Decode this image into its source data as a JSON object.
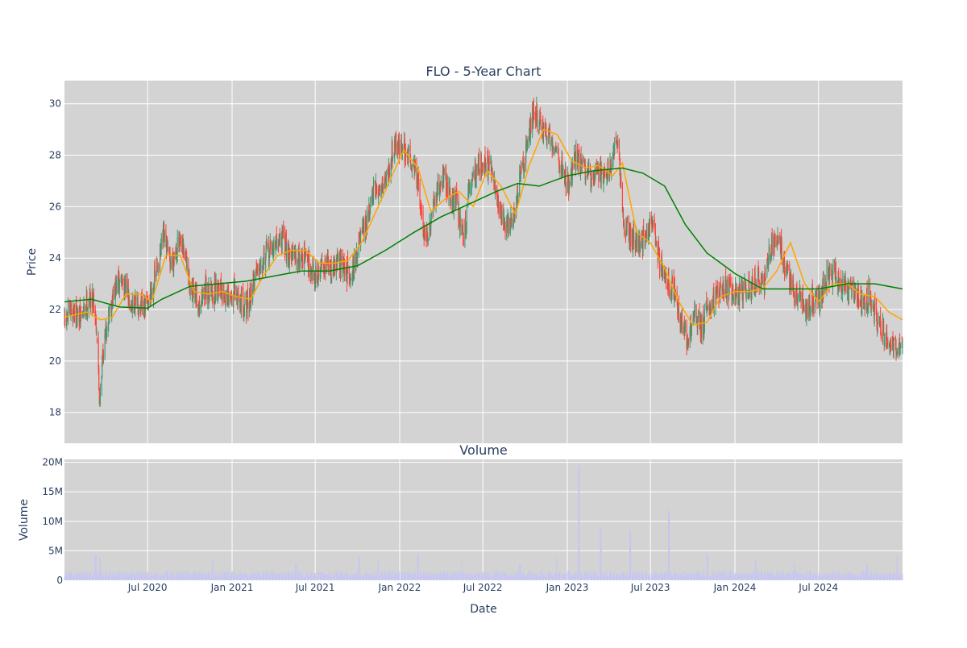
{
  "chart_data": [
    {
      "type": "candlestick",
      "title": "FLO - 5-Year Chart",
      "ylabel": "Price",
      "ylim": [
        16.8,
        30.9
      ],
      "xlim": [
        "2020-01-02",
        "2024-12-31"
      ],
      "yticks": [
        18,
        20,
        22,
        24,
        26,
        28,
        30
      ],
      "colors": {
        "up": "#3d9970",
        "down": "#ff4136",
        "ma_short": "#ffa500",
        "ma_long": "#008000",
        "plot_bg": "#d3d3d3",
        "grid": "#ffffff"
      },
      "series": [
        {
          "name": "Close",
          "kind": "candles",
          "points": [
            [
              "2020-01-02",
              21.5
            ],
            [
              "2020-01-20",
              22.0
            ],
            [
              "2020-02-05",
              21.6
            ],
            [
              "2020-02-20",
              22.3
            ],
            [
              "2020-03-05",
              22.5
            ],
            [
              "2020-03-12",
              21.3
            ],
            [
              "2020-03-18",
              18.5
            ],
            [
              "2020-03-25",
              20.2
            ],
            [
              "2020-04-08",
              22.0
            ],
            [
              "2020-04-22",
              22.8
            ],
            [
              "2020-05-05",
              23.2
            ],
            [
              "2020-05-20",
              22.5
            ],
            [
              "2020-06-05",
              22.2
            ],
            [
              "2020-06-22",
              22.0
            ],
            [
              "2020-07-06",
              22.5
            ],
            [
              "2020-07-20",
              23.4
            ],
            [
              "2020-08-05",
              24.8
            ],
            [
              "2020-08-20",
              23.8
            ],
            [
              "2020-09-05",
              24.5
            ],
            [
              "2020-09-20",
              24.2
            ],
            [
              "2020-10-05",
              22.5
            ],
            [
              "2020-10-20",
              22.3
            ],
            [
              "2020-11-05",
              22.8
            ],
            [
              "2020-11-20",
              22.6
            ],
            [
              "2020-12-05",
              23.0
            ],
            [
              "2020-12-20",
              22.3
            ],
            [
              "2021-01-05",
              22.6
            ],
            [
              "2021-01-20",
              22.4
            ],
            [
              "2021-02-05",
              22.1
            ],
            [
              "2021-02-20",
              23.4
            ],
            [
              "2021-03-05",
              24.0
            ],
            [
              "2021-03-20",
              24.2
            ],
            [
              "2021-04-05",
              24.5
            ],
            [
              "2021-04-20",
              24.8
            ],
            [
              "2021-05-05",
              24.2
            ],
            [
              "2021-05-20",
              24.0
            ],
            [
              "2021-06-05",
              24.1
            ],
            [
              "2021-06-20",
              23.7
            ],
            [
              "2021-07-05",
              23.2
            ],
            [
              "2021-07-20",
              23.9
            ],
            [
              "2021-08-05",
              23.5
            ],
            [
              "2021-08-20",
              23.9
            ],
            [
              "2021-09-05",
              23.4
            ],
            [
              "2021-09-20",
              23.5
            ],
            [
              "2021-10-05",
              24.6
            ],
            [
              "2021-10-20",
              25.2
            ],
            [
              "2021-11-05",
              26.5
            ],
            [
              "2021-11-20",
              26.8
            ],
            [
              "2021-12-05",
              27.2
            ],
            [
              "2021-12-20",
              28.5
            ],
            [
              "2022-01-05",
              28.3
            ],
            [
              "2022-01-20",
              28.0
            ],
            [
              "2022-02-05",
              27.5
            ],
            [
              "2022-02-20",
              25.2
            ],
            [
              "2022-03-05",
              24.8
            ],
            [
              "2022-03-20",
              26.3
            ],
            [
              "2022-04-05",
              27.2
            ],
            [
              "2022-04-20",
              26.5
            ],
            [
              "2022-05-05",
              26.2
            ],
            [
              "2022-05-20",
              24.8
            ],
            [
              "2022-06-05",
              27.0
            ],
            [
              "2022-06-20",
              27.6
            ],
            [
              "2022-07-05",
              27.8
            ],
            [
              "2022-07-20",
              27.3
            ],
            [
              "2022-08-05",
              26.0
            ],
            [
              "2022-08-20",
              25.2
            ],
            [
              "2022-09-05",
              25.5
            ],
            [
              "2022-09-20",
              27.0
            ],
            [
              "2022-10-05",
              28.5
            ],
            [
              "2022-10-20",
              29.8
            ],
            [
              "2022-11-05",
              29.0
            ],
            [
              "2022-11-20",
              28.8
            ],
            [
              "2022-12-05",
              28.4
            ],
            [
              "2022-12-20",
              27.5
            ],
            [
              "2023-01-05",
              26.8
            ],
            [
              "2023-01-20",
              28.0
            ],
            [
              "2023-02-05",
              27.6
            ],
            [
              "2023-02-20",
              27.0
            ],
            [
              "2023-03-05",
              27.5
            ],
            [
              "2023-03-20",
              27.3
            ],
            [
              "2023-04-05",
              27.6
            ],
            [
              "2023-04-20",
              28.4
            ],
            [
              "2023-05-05",
              25.2
            ],
            [
              "2023-05-20",
              24.8
            ],
            [
              "2023-06-05",
              24.5
            ],
            [
              "2023-06-20",
              24.8
            ],
            [
              "2023-07-05",
              25.5
            ],
            [
              "2023-07-20",
              24.0
            ],
            [
              "2023-08-05",
              23.0
            ],
            [
              "2023-08-20",
              22.8
            ],
            [
              "2023-09-05",
              21.5
            ],
            [
              "2023-09-20",
              20.8
            ],
            [
              "2023-10-05",
              21.8
            ],
            [
              "2023-10-20",
              21.2
            ],
            [
              "2023-11-05",
              22.2
            ],
            [
              "2023-11-20",
              22.6
            ],
            [
              "2023-12-05",
              22.8
            ],
            [
              "2023-12-20",
              22.8
            ],
            [
              "2024-01-05",
              22.5
            ],
            [
              "2024-01-20",
              22.7
            ],
            [
              "2024-02-05",
              22.8
            ],
            [
              "2024-02-20",
              23.2
            ],
            [
              "2024-03-05",
              23.0
            ],
            [
              "2024-03-20",
              24.5
            ],
            [
              "2024-04-05",
              25.0
            ],
            [
              "2024-04-20",
              23.5
            ],
            [
              "2024-05-05",
              22.8
            ],
            [
              "2024-05-20",
              22.5
            ],
            [
              "2024-06-05",
              22.0
            ],
            [
              "2024-06-20",
              22.4
            ],
            [
              "2024-07-05",
              22.6
            ],
            [
              "2024-07-20",
              23.2
            ],
            [
              "2024-08-05",
              23.5
            ],
            [
              "2024-08-20",
              23.0
            ],
            [
              "2024-09-05",
              22.6
            ],
            [
              "2024-09-20",
              22.8
            ],
            [
              "2024-10-05",
              22.3
            ],
            [
              "2024-10-20",
              22.6
            ],
            [
              "2024-11-05",
              21.6
            ],
            [
              "2024-11-20",
              21.0
            ],
            [
              "2024-12-05",
              20.6
            ],
            [
              "2024-12-20",
              20.4
            ],
            [
              "2024-12-31",
              20.5
            ]
          ]
        },
        {
          "name": "MA Short",
          "kind": "line",
          "points": [
            [
              "2020-01-02",
              21.7
            ],
            [
              "2020-02-20",
              21.9
            ],
            [
              "2020-03-20",
              21.6
            ],
            [
              "2020-04-15",
              21.7
            ],
            [
              "2020-05-15",
              22.6
            ],
            [
              "2020-06-15",
              22.6
            ],
            [
              "2020-07-10",
              22.3
            ],
            [
              "2020-08-10",
              24.1
            ],
            [
              "2020-09-10",
              24.1
            ],
            [
              "2020-10-10",
              22.7
            ],
            [
              "2020-11-10",
              22.6
            ],
            [
              "2020-12-10",
              22.7
            ],
            [
              "2021-01-10",
              22.5
            ],
            [
              "2021-02-10",
              22.4
            ],
            [
              "2021-03-10",
              23.3
            ],
            [
              "2021-04-10",
              24.1
            ],
            [
              "2021-05-10",
              24.3
            ],
            [
              "2021-06-10",
              24.3
            ],
            [
              "2021-07-10",
              23.8
            ],
            [
              "2021-08-10",
              23.8
            ],
            [
              "2021-09-10",
              23.9
            ],
            [
              "2021-10-10",
              24.6
            ],
            [
              "2021-11-10",
              25.8
            ],
            [
              "2021-12-10",
              27.0
            ],
            [
              "2022-01-10",
              28.2
            ],
            [
              "2022-02-10",
              27.5
            ],
            [
              "2022-03-10",
              25.8
            ],
            [
              "2022-04-10",
              26.3
            ],
            [
              "2022-05-10",
              26.6
            ],
            [
              "2022-06-10",
              26.0
            ],
            [
              "2022-07-10",
              27.4
            ],
            [
              "2022-08-10",
              26.8
            ],
            [
              "2022-09-10",
              25.7
            ],
            [
              "2022-10-10",
              27.6
            ],
            [
              "2022-11-10",
              29.0
            ],
            [
              "2022-12-10",
              28.8
            ],
            [
              "2023-01-10",
              27.8
            ],
            [
              "2023-02-10",
              27.5
            ],
            [
              "2023-03-10",
              27.6
            ],
            [
              "2023-04-10",
              27.2
            ],
            [
              "2023-05-01",
              27.7
            ],
            [
              "2023-06-01",
              25.0
            ],
            [
              "2023-07-01",
              24.6
            ],
            [
              "2023-08-01",
              23.6
            ],
            [
              "2023-09-01",
              22.3
            ],
            [
              "2023-10-01",
              21.4
            ],
            [
              "2023-11-01",
              21.5
            ],
            [
              "2023-12-01",
              22.5
            ],
            [
              "2024-01-01",
              22.7
            ],
            [
              "2024-02-01",
              22.7
            ],
            [
              "2024-03-01",
              22.8
            ],
            [
              "2024-04-01",
              23.5
            ],
            [
              "2024-05-01",
              24.6
            ],
            [
              "2024-06-01",
              23.0
            ],
            [
              "2024-07-01",
              22.3
            ],
            [
              "2024-08-01",
              23.0
            ],
            [
              "2024-09-01",
              23.0
            ],
            [
              "2024-10-01",
              22.6
            ],
            [
              "2024-11-01",
              22.5
            ],
            [
              "2024-12-01",
              21.9
            ],
            [
              "2024-12-31",
              21.6
            ]
          ]
        },
        {
          "name": "MA Long",
          "kind": "line",
          "points": [
            [
              "2020-01-02",
              22.3
            ],
            [
              "2020-03-01",
              22.4
            ],
            [
              "2020-05-01",
              22.1
            ],
            [
              "2020-07-01",
              22.05
            ],
            [
              "2020-08-01",
              22.4
            ],
            [
              "2020-10-01",
              22.9
            ],
            [
              "2020-12-01",
              23.0
            ],
            [
              "2021-02-01",
              23.1
            ],
            [
              "2021-04-01",
              23.3
            ],
            [
              "2021-06-01",
              23.5
            ],
            [
              "2021-08-01",
              23.5
            ],
            [
              "2021-10-01",
              23.7
            ],
            [
              "2021-12-01",
              24.3
            ],
            [
              "2022-02-01",
              25.0
            ],
            [
              "2022-04-01",
              25.6
            ],
            [
              "2022-06-01",
              26.1
            ],
            [
              "2022-08-01",
              26.6
            ],
            [
              "2022-09-15",
              26.9
            ],
            [
              "2022-11-01",
              26.8
            ],
            [
              "2023-01-01",
              27.2
            ],
            [
              "2023-03-01",
              27.4
            ],
            [
              "2023-05-01",
              27.5
            ],
            [
              "2023-06-15",
              27.3
            ],
            [
              "2023-08-01",
              26.8
            ],
            [
              "2023-09-15",
              25.3
            ],
            [
              "2023-11-01",
              24.2
            ],
            [
              "2024-01-01",
              23.4
            ],
            [
              "2024-03-01",
              22.8
            ],
            [
              "2024-05-01",
              22.8
            ],
            [
              "2024-07-01",
              22.8
            ],
            [
              "2024-09-01",
              23.0
            ],
            [
              "2024-11-01",
              23.0
            ],
            [
              "2024-12-31",
              22.8
            ]
          ]
        }
      ]
    },
    {
      "type": "bar",
      "title": "Volume",
      "xlabel": "Date",
      "ylabel": "Volume",
      "ylim": [
        0,
        20500000
      ],
      "yticks": [
        0,
        5000000,
        10000000,
        15000000,
        20000000
      ],
      "ytick_labels": [
        "0",
        "5M",
        "10M",
        "15M",
        "20M"
      ],
      "xticks": [
        "2020-07-01",
        "2021-01-01",
        "2021-07-01",
        "2022-01-01",
        "2022-07-01",
        "2023-01-01",
        "2023-07-01",
        "2024-01-01",
        "2024-07-01"
      ],
      "xtick_labels": [
        "Jul 2020",
        "Jan 2021",
        "Jul 2021",
        "Jan 2022",
        "Jul 2022",
        "Jan 2023",
        "Jul 2023",
        "Jan 2024",
        "Jul 2024"
      ],
      "colors": {
        "bar": "#c6c6f2"
      },
      "base_volume": 1200000,
      "spikes": [
        [
          "2020-03-10",
          4200000
        ],
        [
          "2020-03-20",
          3800000
        ],
        [
          "2020-11-20",
          3500000
        ],
        [
          "2021-05-20",
          2900000
        ],
        [
          "2021-10-05",
          4000000
        ],
        [
          "2021-11-15",
          3200000
        ],
        [
          "2022-02-10",
          4300000
        ],
        [
          "2022-05-15",
          3000000
        ],
        [
          "2022-09-20",
          2800000
        ],
        [
          "2022-12-10",
          4200000
        ],
        [
          "2023-01-26",
          19500000
        ],
        [
          "2023-03-15",
          9000000
        ],
        [
          "2023-05-18",
          8300000
        ],
        [
          "2023-08-10",
          11800000
        ],
        [
          "2023-11-02",
          4500000
        ],
        [
          "2024-02-15",
          3200000
        ],
        [
          "2024-05-10",
          3000000
        ],
        [
          "2024-10-15",
          2600000
        ],
        [
          "2024-12-20",
          4000000
        ]
      ]
    }
  ]
}
